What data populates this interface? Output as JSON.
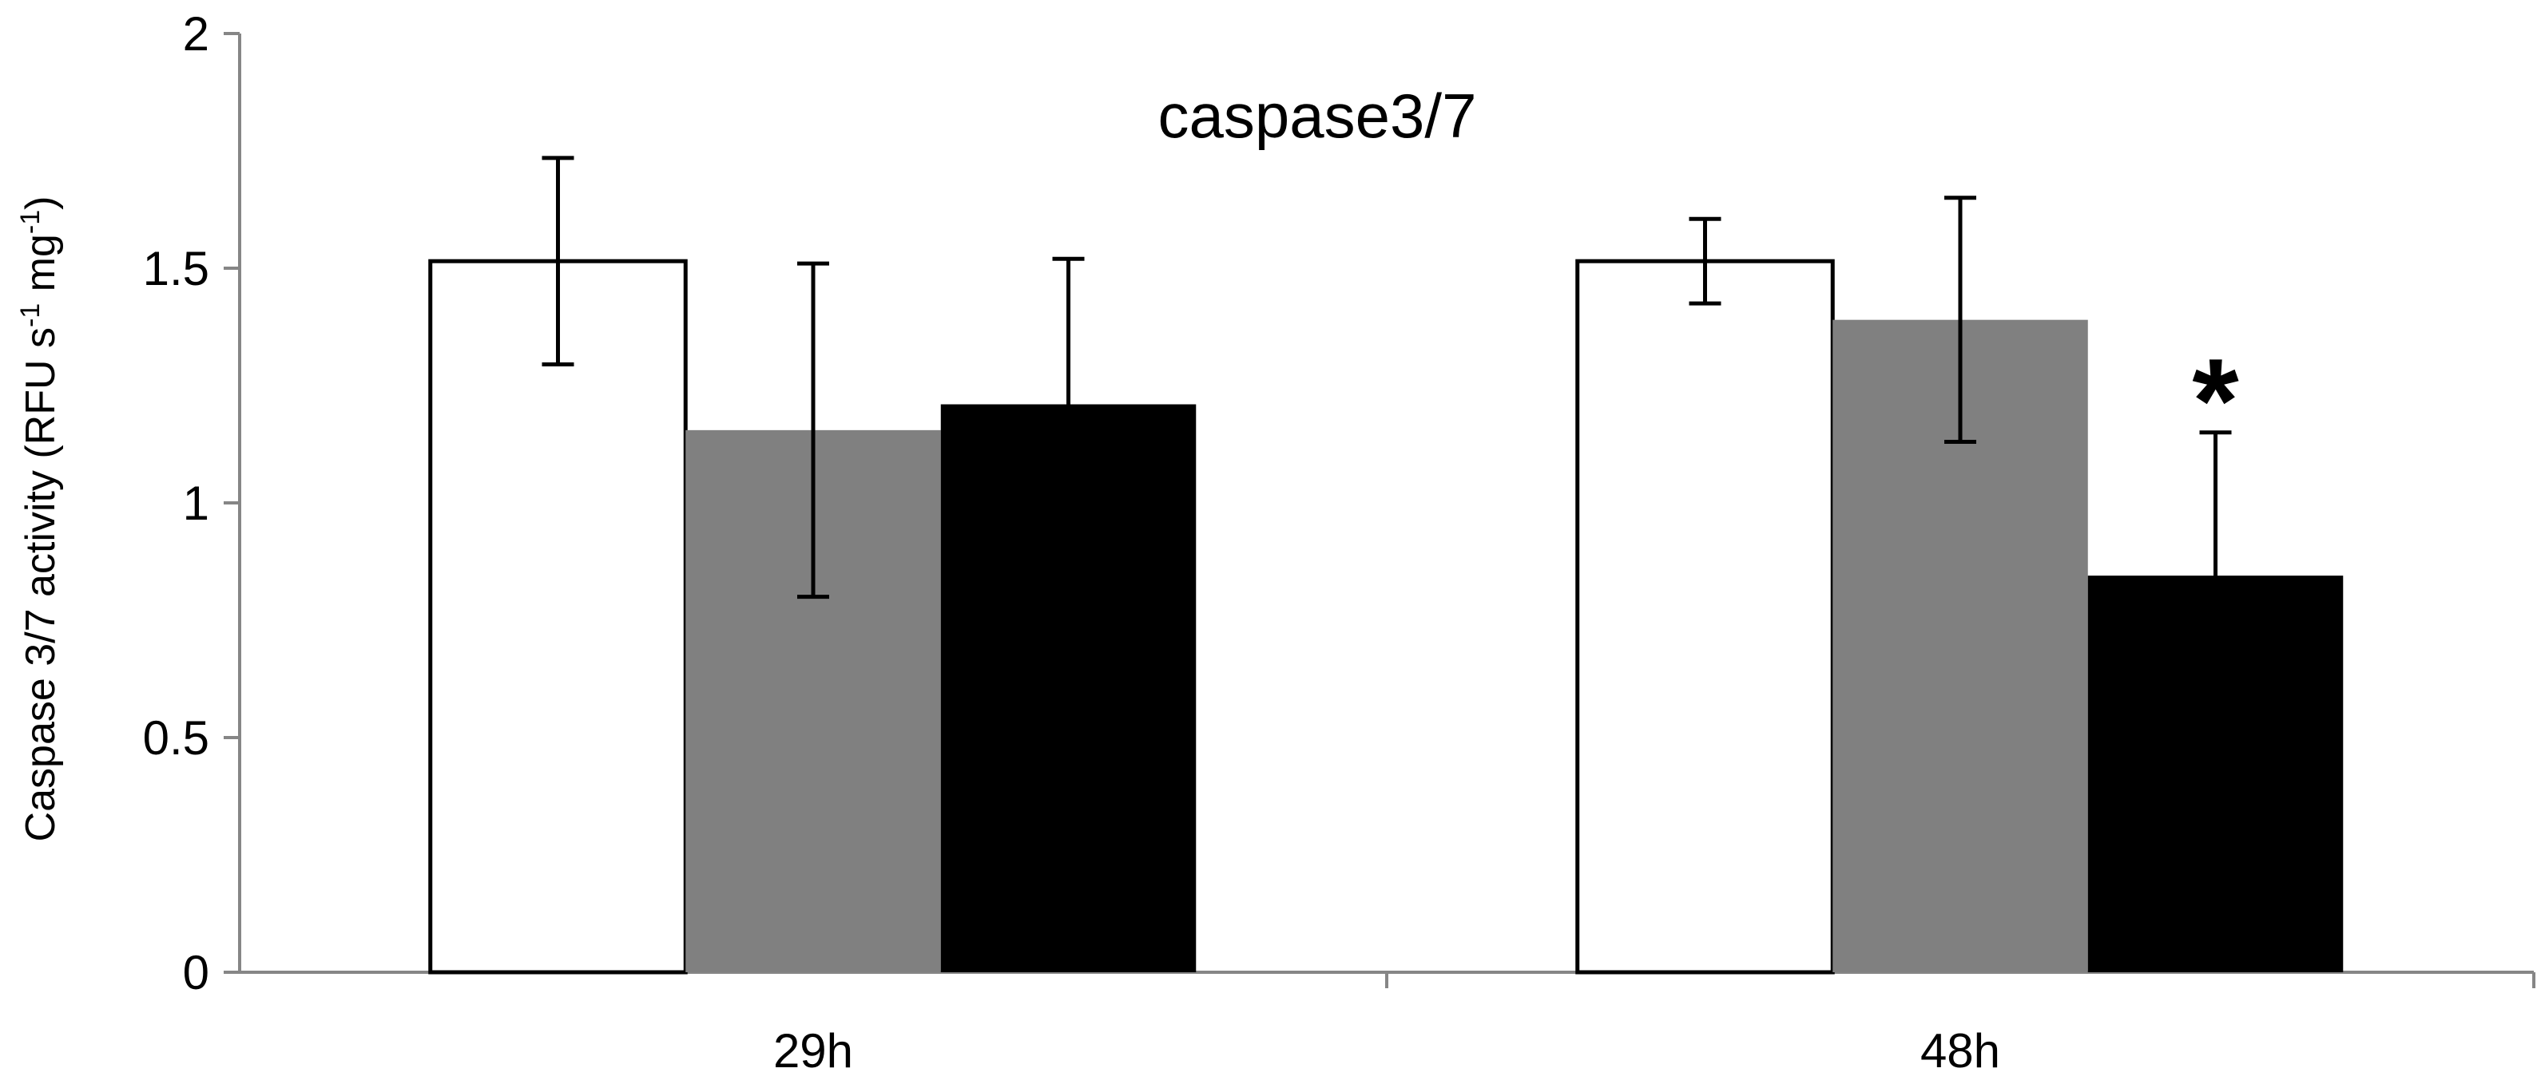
{
  "chart_data": {
    "type": "bar",
    "title": "caspase3/7",
    "ylabel": {
      "parts": [
        {
          "text": "Caspase 3/7 activity (RFU s",
          "sup": false
        },
        {
          "text": "-1",
          "sup": true
        },
        {
          "text": " mg",
          "sup": false
        },
        {
          "text": "-1",
          "sup": true
        },
        {
          "text": ")",
          "sup": false
        }
      ]
    },
    "xlabel": "",
    "ylim": [
      0,
      2
    ],
    "yticks": [
      0,
      0.5,
      1,
      1.5,
      2
    ],
    "ytick_labels": [
      "0",
      "0.5",
      "1",
      "1.5",
      "2"
    ],
    "categories": [
      "29h",
      "48h"
    ],
    "grid": false,
    "legend": "none",
    "series": [
      {
        "color": "#ffffff",
        "stroke": "#000000",
        "values": [
          1.515,
          1.515
        ],
        "error": [
          0.22,
          0.09
        ]
      },
      {
        "color": "#808080",
        "stroke": "none",
        "values": [
          1.155,
          1.39
        ],
        "error": [
          0.355,
          0.26
        ]
      },
      {
        "color": "#000000",
        "stroke": "none",
        "values": [
          1.21,
          0.845
        ],
        "error": [
          0.31,
          0.305
        ]
      }
    ],
    "annotations": [
      {
        "text": "*",
        "category_index": 1,
        "series_index": 2,
        "y": 1.3
      }
    ]
  }
}
